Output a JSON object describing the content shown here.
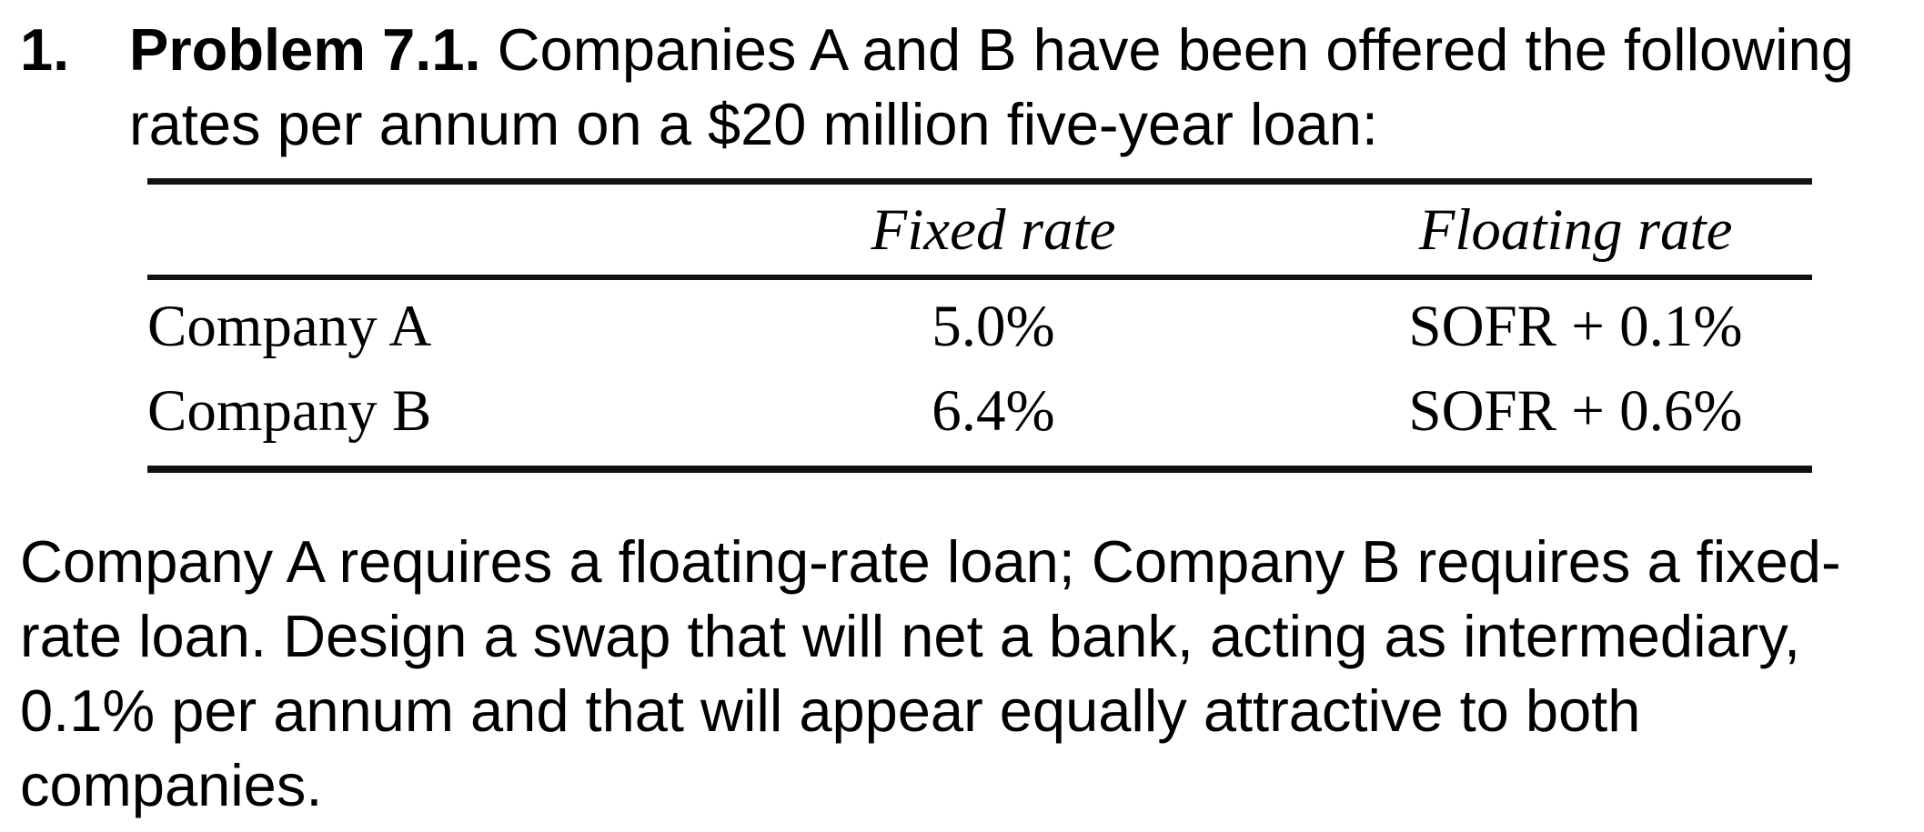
{
  "problem": {
    "number": "1.",
    "title": "Problem 7.1.",
    "intro_line_1": " Companies A and B have been offered the following",
    "intro_line_2": "rates per annum on a $20 million five-year loan:"
  },
  "table": {
    "columns": [
      "",
      "Fixed rate",
      "Floating rate"
    ],
    "rows": [
      {
        "company": "Company A",
        "fixed": "5.0%",
        "floating": "SOFR + 0.1%"
      },
      {
        "company": "Company B",
        "fixed": "6.4%",
        "floating": "SOFR + 0.6%"
      }
    ]
  },
  "question": {
    "lines": [
      "Company A requires a floating-rate loan; Company B requires a fixed-",
      "rate loan. Design a swap that will net a bank, acting as intermediary,",
      "0.1% per annum and that will appear equally attractive to both",
      "companies."
    ]
  }
}
